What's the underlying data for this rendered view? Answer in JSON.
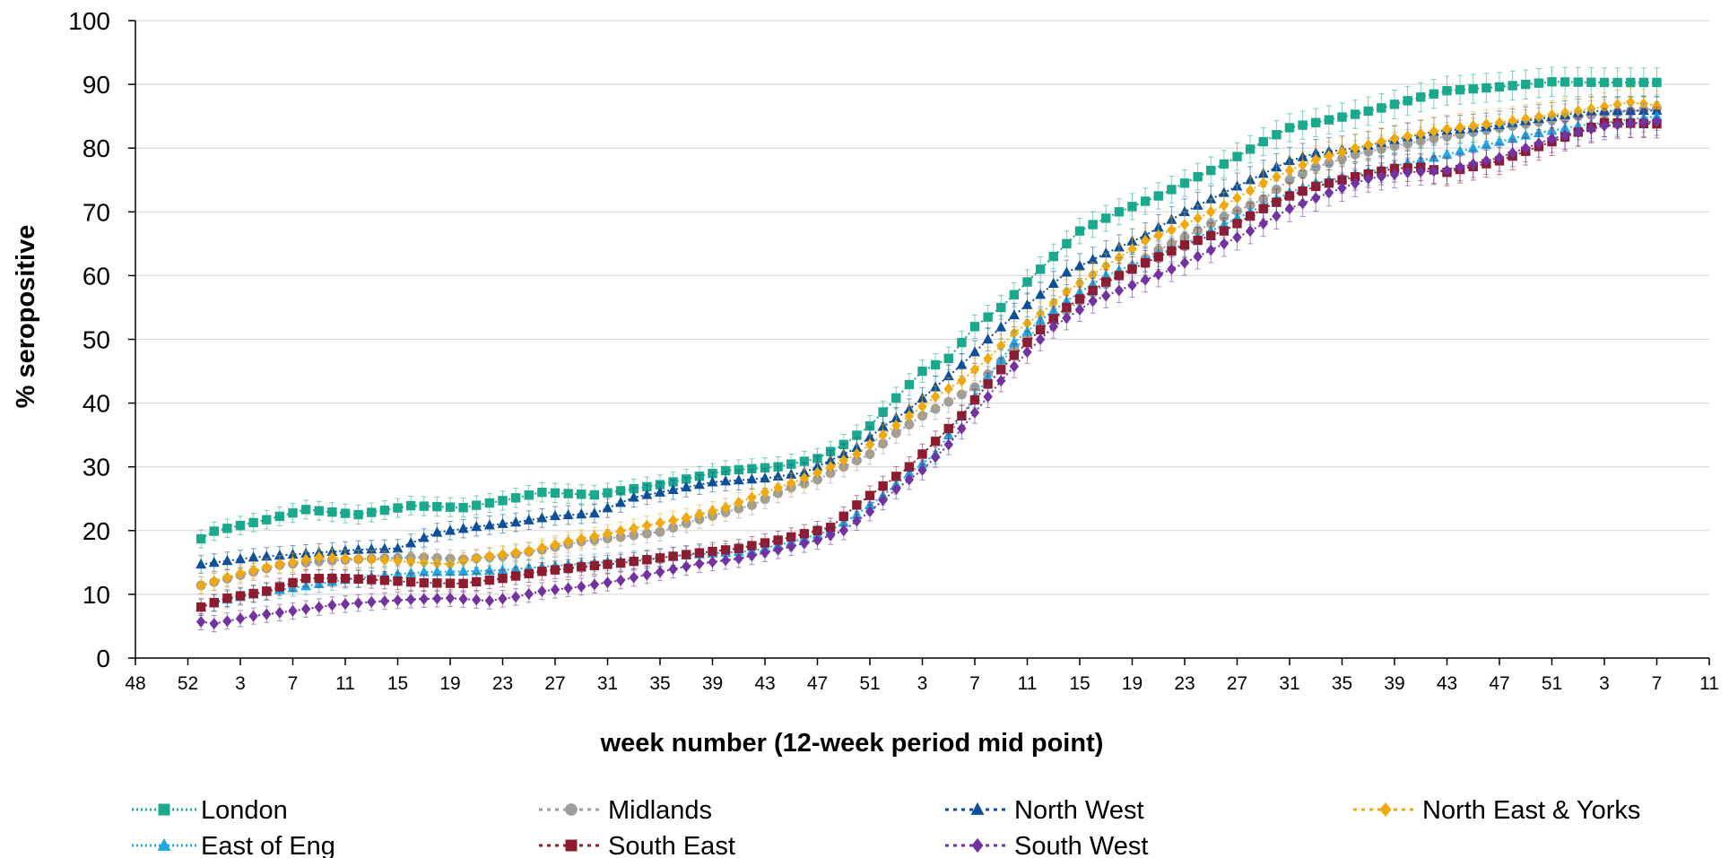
{
  "chart_data": {
    "type": "line",
    "title": "",
    "xlabel": "week number (12-week period mid point)",
    "ylabel": "% seropositive",
    "ylim": [
      0,
      100
    ],
    "yticks": [
      0,
      10,
      20,
      30,
      40,
      50,
      60,
      70,
      80,
      90,
      100
    ],
    "xticks": [
      "48",
      "52",
      "3",
      "7",
      "11",
      "15",
      "19",
      "23",
      "27",
      "31",
      "35",
      "39",
      "43",
      "47",
      "51",
      "3",
      "7",
      "11",
      "15",
      "19",
      "23",
      "27",
      "31",
      "35",
      "39",
      "43",
      "47",
      "51",
      "3",
      "7",
      "11"
    ],
    "xlim_index": [
      0,
      120
    ],
    "x_start_index": 5,
    "x_step": 1,
    "n_points": 112,
    "grid": "horizontal",
    "legend_position": "bottom",
    "series": [
      {
        "name": "London",
        "color": "#1aa98d",
        "marker": "square",
        "line_style": "dotted",
        "anchors": [
          [
            5,
            18.7
          ],
          [
            6,
            19.9
          ],
          [
            8,
            20.8
          ],
          [
            10,
            21.7
          ],
          [
            13,
            23.3
          ],
          [
            17,
            22.5
          ],
          [
            21,
            23.9
          ],
          [
            25,
            23.6
          ],
          [
            28,
            24.7
          ],
          [
            31,
            26.0
          ],
          [
            35,
            25.6
          ],
          [
            40,
            27.2
          ],
          [
            45,
            29.4
          ],
          [
            49,
            30.0
          ],
          [
            52,
            31.3
          ],
          [
            54,
            33.5
          ],
          [
            56,
            36.4
          ],
          [
            58,
            40.8
          ],
          [
            60,
            45.0
          ],
          [
            62,
            47.0
          ],
          [
            64,
            52.0
          ],
          [
            66,
            55.0
          ],
          [
            68,
            59.0
          ],
          [
            70,
            63.0
          ],
          [
            72,
            67.0
          ],
          [
            75,
            70.0
          ],
          [
            78,
            72.5
          ],
          [
            80,
            74.5
          ],
          [
            83,
            77.5
          ],
          [
            86,
            81.0
          ],
          [
            88,
            83.2
          ],
          [
            90,
            84.0
          ],
          [
            93,
            85.3
          ],
          [
            95,
            86.3
          ],
          [
            98,
            88.0
          ],
          [
            100,
            89.0
          ],
          [
            104,
            89.6
          ],
          [
            108,
            90.4
          ],
          [
            112,
            90.3
          ],
          [
            116,
            90.3
          ]
        ]
      },
      {
        "name": "Midlands",
        "color": "#9e9e9e",
        "marker": "circle",
        "line_style": "dotted",
        "anchors": [
          [
            5,
            11.4
          ],
          [
            8,
            13.0
          ],
          [
            11,
            14.6
          ],
          [
            14,
            15.2
          ],
          [
            18,
            15.6
          ],
          [
            22,
            15.8
          ],
          [
            25,
            15.5
          ],
          [
            28,
            16.0
          ],
          [
            31,
            17.0
          ],
          [
            34,
            18.3
          ],
          [
            37,
            19.0
          ],
          [
            40,
            19.8
          ],
          [
            43,
            21.8
          ],
          [
            47,
            24.0
          ],
          [
            50,
            26.8
          ],
          [
            52,
            28.0
          ],
          [
            54,
            30.0
          ],
          [
            56,
            32.0
          ],
          [
            58,
            35.3
          ],
          [
            60,
            38.0
          ],
          [
            62,
            40.2
          ],
          [
            64,
            42.5
          ],
          [
            66,
            46.5
          ],
          [
            68,
            50.5
          ],
          [
            70,
            53.0
          ],
          [
            72,
            56.0
          ],
          [
            75,
            60.0
          ],
          [
            78,
            64.0
          ],
          [
            80,
            66.0
          ],
          [
            83,
            69.2
          ],
          [
            86,
            72.0
          ],
          [
            88,
            75.0
          ],
          [
            90,
            77.0
          ],
          [
            93,
            79.0
          ],
          [
            96,
            80.3
          ],
          [
            99,
            81.5
          ],
          [
            102,
            82.5
          ],
          [
            106,
            83.8
          ],
          [
            110,
            85.0
          ],
          [
            116,
            86.2
          ]
        ]
      },
      {
        "name": "North West",
        "color": "#0d4f99",
        "marker": "triangle",
        "line_style": "dotted",
        "anchors": [
          [
            5,
            14.7
          ],
          [
            9,
            15.8
          ],
          [
            13,
            16.4
          ],
          [
            17,
            17.0
          ],
          [
            20,
            17.2
          ],
          [
            23,
            19.7
          ],
          [
            26,
            20.6
          ],
          [
            29,
            21.3
          ],
          [
            32,
            22.3
          ],
          [
            35,
            22.7
          ],
          [
            38,
            25.2
          ],
          [
            41,
            26.4
          ],
          [
            44,
            27.6
          ],
          [
            48,
            28.2
          ],
          [
            51,
            29.1
          ],
          [
            53,
            31.0
          ],
          [
            55,
            33.0
          ],
          [
            57,
            36.3
          ],
          [
            59,
            39.0
          ],
          [
            61,
            42.5
          ],
          [
            63,
            46.0
          ],
          [
            65,
            50.0
          ],
          [
            67,
            53.8
          ],
          [
            69,
            57.0
          ],
          [
            71,
            60.5
          ],
          [
            74,
            63.5
          ],
          [
            77,
            66.3
          ],
          [
            80,
            70.0
          ],
          [
            83,
            73.0
          ],
          [
            86,
            76.0
          ],
          [
            88,
            78.0
          ],
          [
            90,
            79.2
          ],
          [
            93,
            80.0
          ],
          [
            96,
            81.3
          ],
          [
            99,
            82.6
          ],
          [
            103,
            83.3
          ],
          [
            107,
            84.6
          ],
          [
            111,
            85.8
          ],
          [
            116,
            85.9
          ]
        ]
      },
      {
        "name": "North East & Yorks",
        "color": "#f0a90e",
        "marker": "diamond",
        "line_style": "dotted",
        "anchors": [
          [
            5,
            11.4
          ],
          [
            8,
            13.3
          ],
          [
            11,
            14.7
          ],
          [
            14,
            15.8
          ],
          [
            18,
            15.5
          ],
          [
            21,
            15.1
          ],
          [
            24,
            14.7
          ],
          [
            27,
            16.0
          ],
          [
            30,
            16.8
          ],
          [
            33,
            18.3
          ],
          [
            36,
            19.5
          ],
          [
            39,
            20.8
          ],
          [
            42,
            22.0
          ],
          [
            45,
            23.6
          ],
          [
            48,
            26.0
          ],
          [
            51,
            28.2
          ],
          [
            53,
            30.0
          ],
          [
            55,
            32.0
          ],
          [
            57,
            35.0
          ],
          [
            59,
            38.0
          ],
          [
            61,
            41.0
          ],
          [
            63,
            43.5
          ],
          [
            65,
            47.0
          ],
          [
            67,
            51.0
          ],
          [
            69,
            54.0
          ],
          [
            71,
            57.5
          ],
          [
            74,
            61.5
          ],
          [
            77,
            65.5
          ],
          [
            80,
            68.0
          ],
          [
            83,
            71.0
          ],
          [
            86,
            74.5
          ],
          [
            88,
            76.5
          ],
          [
            90,
            78.2
          ],
          [
            93,
            80.0
          ],
          [
            96,
            81.5
          ],
          [
            100,
            83.0
          ],
          [
            104,
            84.0
          ],
          [
            108,
            85.2
          ],
          [
            112,
            86.5
          ],
          [
            114,
            87.2
          ],
          [
            116,
            86.7
          ]
        ]
      },
      {
        "name": "East of Eng",
        "color": "#1ea7e0",
        "marker": "triangle",
        "line_style": "dotted",
        "anchors": [
          [
            5,
            8.0
          ],
          [
            7,
            9.2
          ],
          [
            10,
            10.4
          ],
          [
            13,
            11.3
          ],
          [
            16,
            12.3
          ],
          [
            19,
            13.0
          ],
          [
            22,
            13.5
          ],
          [
            25,
            13.6
          ],
          [
            28,
            13.8
          ],
          [
            31,
            14.3
          ],
          [
            34,
            14.8
          ],
          [
            37,
            15.2
          ],
          [
            40,
            15.8
          ],
          [
            43,
            16.3
          ],
          [
            47,
            16.8
          ],
          [
            50,
            18.2
          ],
          [
            53,
            20.0
          ],
          [
            55,
            22.5
          ],
          [
            57,
            25.5
          ],
          [
            59,
            29.0
          ],
          [
            61,
            32.0
          ],
          [
            63,
            38.0
          ],
          [
            65,
            44.0
          ],
          [
            67,
            49.5
          ],
          [
            69,
            53.0
          ],
          [
            71,
            56.0
          ],
          [
            74,
            60.0
          ],
          [
            77,
            62.5
          ],
          [
            80,
            65.0
          ],
          [
            83,
            68.0
          ],
          [
            86,
            71.0
          ],
          [
            88,
            73.0
          ],
          [
            90,
            74.5
          ],
          [
            93,
            75.8
          ],
          [
            96,
            77.2
          ],
          [
            99,
            78.5
          ],
          [
            102,
            80.0
          ],
          [
            106,
            82.0
          ],
          [
            110,
            83.5
          ],
          [
            116,
            85.0
          ]
        ]
      },
      {
        "name": "South East",
        "color": "#8c1c2e",
        "marker": "square",
        "line_style": "dotted",
        "anchors": [
          [
            5,
            8.0
          ],
          [
            7,
            9.4
          ],
          [
            10,
            10.5
          ],
          [
            13,
            12.5
          ],
          [
            16,
            12.5
          ],
          [
            19,
            12.2
          ],
          [
            22,
            11.8
          ],
          [
            25,
            11.7
          ],
          [
            28,
            12.5
          ],
          [
            31,
            13.6
          ],
          [
            34,
            14.3
          ],
          [
            37,
            14.9
          ],
          [
            40,
            15.7
          ],
          [
            43,
            16.5
          ],
          [
            46,
            17.2
          ],
          [
            49,
            18.5
          ],
          [
            51,
            19.5
          ],
          [
            53,
            20.5
          ],
          [
            55,
            24.0
          ],
          [
            57,
            27.0
          ],
          [
            59,
            30.0
          ],
          [
            61,
            34.0
          ],
          [
            63,
            38.0
          ],
          [
            65,
            43.0
          ],
          [
            67,
            47.5
          ],
          [
            69,
            51.5
          ],
          [
            71,
            55.0
          ],
          [
            74,
            59.0
          ],
          [
            77,
            62.0
          ],
          [
            80,
            64.8
          ],
          [
            83,
            67.0
          ],
          [
            86,
            70.5
          ],
          [
            88,
            72.5
          ],
          [
            90,
            74.0
          ],
          [
            93,
            75.5
          ],
          [
            96,
            76.8
          ],
          [
            98,
            77.0
          ],
          [
            100,
            76.2
          ],
          [
            104,
            78.0
          ],
          [
            108,
            81.0
          ],
          [
            112,
            84.0
          ],
          [
            116,
            83.8
          ]
        ]
      },
      {
        "name": "South West",
        "color": "#7232a0",
        "marker": "diamond",
        "line_style": "dotted",
        "anchors": [
          [
            5,
            5.7
          ],
          [
            6,
            5.4
          ],
          [
            9,
            6.6
          ],
          [
            12,
            7.4
          ],
          [
            15,
            8.3
          ],
          [
            18,
            8.8
          ],
          [
            21,
            9.2
          ],
          [
            24,
            9.4
          ],
          [
            27,
            9.0
          ],
          [
            29,
            9.6
          ],
          [
            31,
            10.5
          ],
          [
            34,
            11.2
          ],
          [
            37,
            12.2
          ],
          [
            40,
            13.5
          ],
          [
            43,
            14.8
          ],
          [
            46,
            15.6
          ],
          [
            49,
            17.0
          ],
          [
            52,
            18.5
          ],
          [
            54,
            20.0
          ],
          [
            56,
            23.0
          ],
          [
            58,
            26.5
          ],
          [
            60,
            29.5
          ],
          [
            62,
            33.5
          ],
          [
            64,
            38.5
          ],
          [
            66,
            43.5
          ],
          [
            68,
            48.0
          ],
          [
            70,
            52.0
          ],
          [
            73,
            56.0
          ],
          [
            76,
            58.5
          ],
          [
            79,
            61.0
          ],
          [
            82,
            64.0
          ],
          [
            85,
            67.0
          ],
          [
            88,
            70.5
          ],
          [
            91,
            73.0
          ],
          [
            94,
            75.2
          ],
          [
            97,
            76.2
          ],
          [
            100,
            76.5
          ],
          [
            104,
            78.5
          ],
          [
            108,
            81.5
          ],
          [
            112,
            83.5
          ],
          [
            116,
            84.2
          ]
        ]
      }
    ]
  }
}
